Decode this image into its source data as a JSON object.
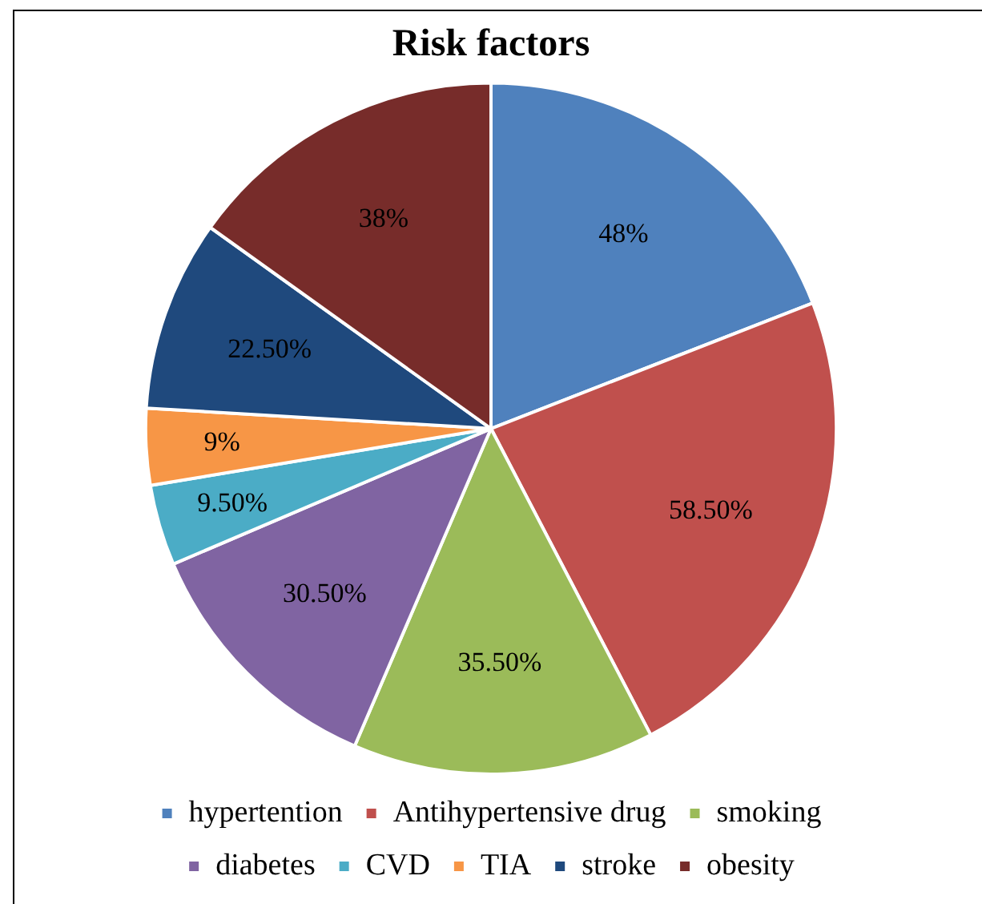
{
  "chart_data": {
    "type": "pie",
    "title": "Risk factors",
    "categories": [
      "hypertention",
      "Antihypertensive drug",
      "smoking",
      "diabetes",
      "CVD",
      "TIA",
      "stroke",
      "obesity"
    ],
    "values": [
      48,
      58.5,
      35.5,
      30.5,
      9.5,
      9,
      22.5,
      38
    ],
    "value_labels": [
      "48%",
      "58.50%",
      "35.50%",
      "30.50%",
      "9.50%",
      "9%",
      "22.50%",
      "38%"
    ],
    "colors": [
      "#4f81bd",
      "#c0504d",
      "#9bbb59",
      "#8064a2",
      "#4bacc6",
      "#f79646",
      "#1f497d",
      "#772c2a"
    ],
    "legend": "bottom"
  }
}
